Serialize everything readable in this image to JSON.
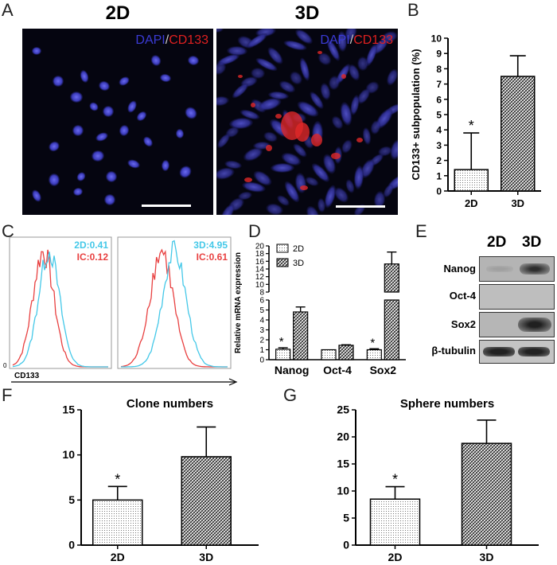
{
  "panels": {
    "A": {
      "letter": "A",
      "images": [
        {
          "title": "2D",
          "stain_dapi": "DAPI",
          "stain_sep": "/",
          "stain_cd133": "CD133"
        },
        {
          "title": "3D",
          "stain_dapi": "DAPI",
          "stain_sep": "/",
          "stain_cd133": "CD133"
        }
      ],
      "colors": {
        "dapi": "#3b3bd6",
        "cd133": "#e02020",
        "scale_bar": "#ffffff"
      }
    },
    "B": {
      "letter": "B"
    },
    "C": {
      "letter": "C",
      "plots": [
        {
          "label_cyan": "2D:0.41",
          "label_red": "IC:0.12"
        },
        {
          "label_cyan": "3D:4.95",
          "label_red": "IC:0.61"
        }
      ],
      "y_zero": "0",
      "xlabel": "CD133",
      "colors": {
        "cyan": "#44c8e8",
        "red": "#e84040"
      }
    },
    "D": {
      "letter": "D"
    },
    "E": {
      "letter": "E",
      "lanes": [
        "2D",
        "3D"
      ],
      "rows": [
        "Nanog",
        "Oct-4",
        "Sox2",
        "β-tubulin"
      ]
    },
    "F": {
      "letter": "F"
    },
    "G": {
      "letter": "G"
    }
  },
  "chart_data": [
    {
      "id": "B",
      "type": "bar",
      "categories": [
        "2D",
        "3D"
      ],
      "values": [
        1.4,
        7.5
      ],
      "errors": [
        2.4,
        1.35
      ],
      "significance": [
        "*",
        ""
      ],
      "title": "",
      "xlabel": "",
      "ylabel": "CD133+ subpopulation (%)",
      "ylim": [
        0,
        10
      ],
      "yticks": [
        0,
        1,
        2,
        3,
        4,
        5,
        6,
        7,
        8,
        9,
        10
      ]
    },
    {
      "id": "D",
      "type": "bar",
      "categories": [
        "Nanog",
        "Oct-4",
        "Sox2"
      ],
      "series": [
        {
          "name": "2D",
          "values": [
            1.05,
            1.0,
            1.0
          ],
          "errors": [
            0.15,
            0.0,
            0.1
          ],
          "significance": [
            "*",
            "",
            "*"
          ]
        },
        {
          "name": "3D",
          "values": [
            4.8,
            1.45,
            15.3
          ],
          "errors": [
            0.5,
            0.05,
            3.1
          ],
          "significance": [
            "",
            "",
            ""
          ]
        }
      ],
      "ylabel": "Relative mRNA  expression",
      "ylim": [
        0,
        20
      ],
      "y_break": [
        6,
        8
      ],
      "yticks": [
        0,
        1,
        2,
        3,
        4,
        5,
        6,
        8,
        10,
        12,
        14,
        16,
        18,
        20
      ],
      "legend": "top-left"
    },
    {
      "id": "F",
      "type": "bar",
      "categories": [
        "2D",
        "3D"
      ],
      "values": [
        5.0,
        9.8
      ],
      "errors": [
        1.5,
        3.3
      ],
      "significance": [
        "*",
        ""
      ],
      "title": "Clone numbers",
      "ylim": [
        0,
        15
      ],
      "yticks": [
        0,
        5,
        10,
        15
      ]
    },
    {
      "id": "G",
      "type": "bar",
      "categories": [
        "2D",
        "3D"
      ],
      "values": [
        8.5,
        18.8
      ],
      "errors": [
        2.3,
        4.3
      ],
      "significance": [
        "*",
        ""
      ],
      "title": "Sphere numbers",
      "ylim": [
        0,
        25
      ],
      "yticks": [
        0,
        5,
        10,
        15,
        20,
        25
      ]
    }
  ]
}
